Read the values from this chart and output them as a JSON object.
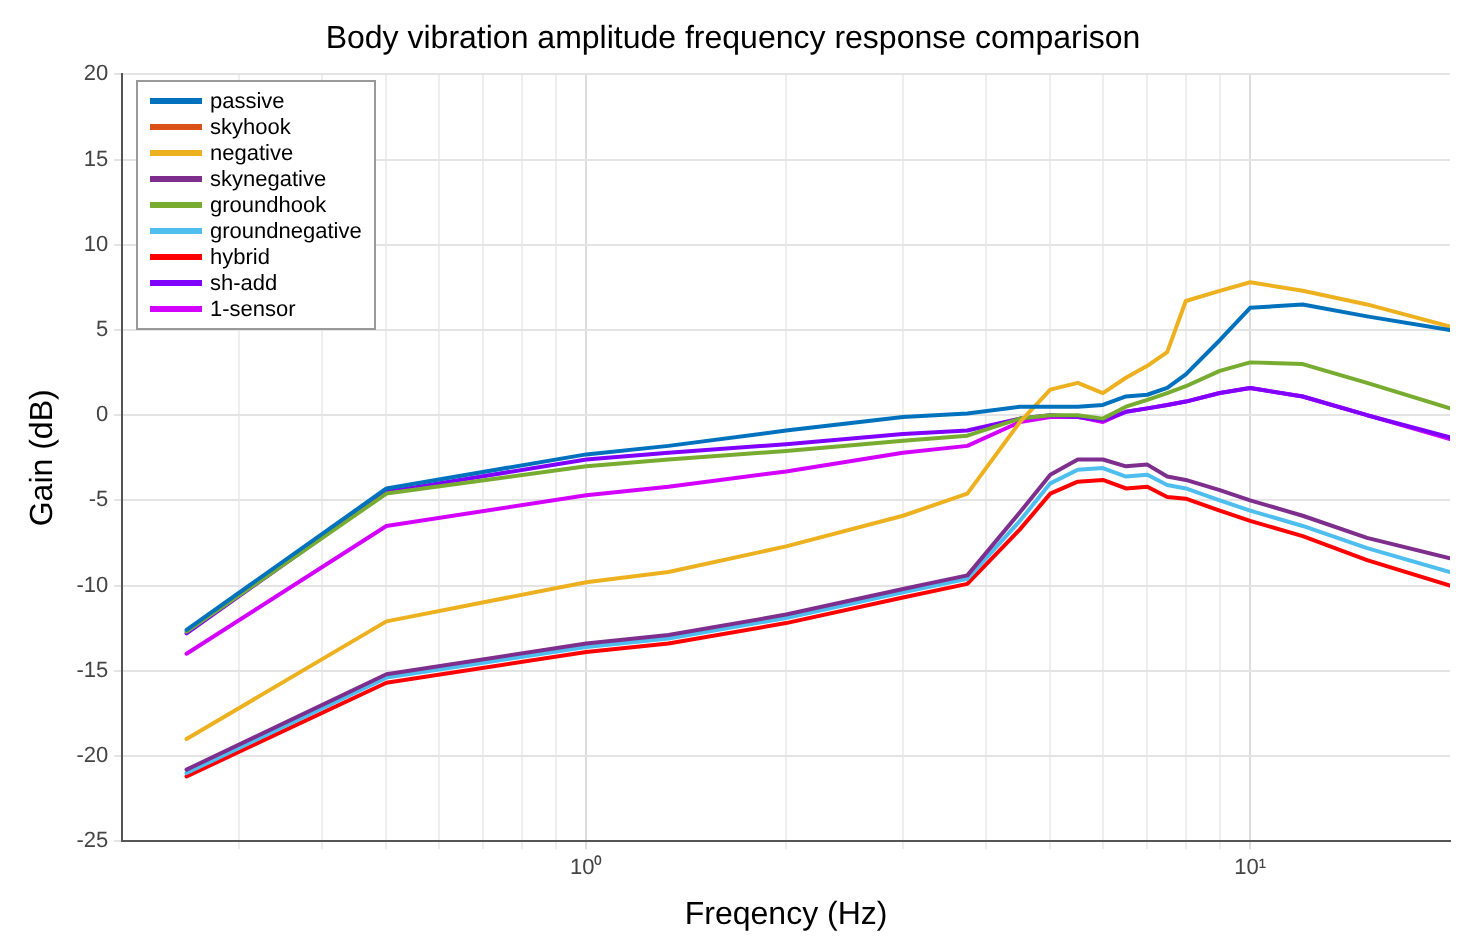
{
  "chart_data": {
    "type": "line",
    "title": "Body vibration amplitude frequency response comparison",
    "xlabel": "Freqency (Hz)",
    "ylabel": "Gain (dB)",
    "x": [
      0.25,
      0.5,
      1,
      1.33,
      2,
      3,
      3.75,
      4.5,
      5,
      5.5,
      6,
      6.5,
      7,
      7.5,
      8,
      9,
      10,
      12,
      15,
      20
    ],
    "series": [
      {
        "name": "passive",
        "color": "#0072bd",
        "values": [
          -12.6,
          -4.3,
          -2.3,
          -1.8,
          -0.9,
          -0.1,
          0.1,
          0.5,
          0.5,
          0.5,
          0.6,
          1.1,
          1.2,
          1.6,
          2.4,
          4.4,
          6.3,
          6.5,
          5.8,
          5.0
        ]
      },
      {
        "name": "skyhook",
        "color": "#d95319",
        "values": [
          null,
          null,
          null,
          null,
          null,
          null,
          null,
          null,
          null,
          null,
          null,
          null,
          null,
          null,
          null,
          null,
          null,
          null,
          null,
          null
        ]
      },
      {
        "name": "negative",
        "color": "#edb120",
        "values": [
          -19,
          -12.1,
          -9.8,
          -9.2,
          -7.7,
          -5.9,
          -4.6,
          -0.4,
          1.5,
          1.9,
          1.3,
          2.2,
          2.9,
          3.7,
          6.7,
          7.3,
          7.8,
          7.3,
          6.5,
          5.2
        ]
      },
      {
        "name": "skynegative",
        "color": "#7e2f8e",
        "values": [
          -20.8,
          -15.2,
          -13.4,
          -12.9,
          -11.7,
          -10.2,
          -9.4,
          -5.7,
          -3.5,
          -2.6,
          -2.6,
          -3.0,
          -2.9,
          -3.6,
          -3.8,
          -4.4,
          -5.0,
          -5.9,
          -7.2,
          -8.4
        ]
      },
      {
        "name": "groundhook",
        "color": "#77ac30",
        "values": [
          -12.7,
          -4.6,
          -3.0,
          -2.6,
          -2.1,
          -1.5,
          -1.2,
          -0.2,
          0,
          0,
          -0.2,
          0.5,
          0.9,
          1.3,
          1.7,
          2.6,
          3.1,
          3.0,
          1.9,
          0.4
        ]
      },
      {
        "name": "groundnegative",
        "color": "#4dbeee",
        "values": [
          -21.0,
          -15.4,
          -13.6,
          -13.1,
          -11.9,
          -10.4,
          -9.6,
          -6.2,
          -4.0,
          -3.2,
          -3.1,
          -3.6,
          -3.5,
          -4.1,
          -4.3,
          -5.0,
          -5.6,
          -6.5,
          -7.8,
          -9.2
        ]
      },
      {
        "name": "hybrid",
        "color": "#ff0000",
        "values": [
          -21.2,
          -15.7,
          -13.9,
          -13.4,
          -12.2,
          -10.7,
          -9.9,
          -6.7,
          -4.6,
          -3.9,
          -3.8,
          -4.3,
          -4.2,
          -4.8,
          -4.9,
          -5.6,
          -6.2,
          -7.1,
          -8.5,
          -10.0
        ]
      },
      {
        "name": "sh-add",
        "color": "#8000ff",
        "values": [
          -12.8,
          -4.5,
          -2.6,
          -2.2,
          -1.7,
          -1.1,
          -0.9,
          -0.2,
          0,
          -0.1,
          -0.3,
          0.2,
          0.4,
          0.6,
          0.8,
          1.3,
          1.6,
          1.1,
          0,
          -1.3
        ]
      },
      {
        "name": "1-sensor",
        "color": "#d400ff",
        "values": [
          -14,
          -6.5,
          -4.7,
          -4.2,
          -3.3,
          -2.2,
          -1.8,
          -0.4,
          -0.1,
          -0.1,
          -0.4,
          0.2,
          0.4,
          0.6,
          0.8,
          1.3,
          1.6,
          1.1,
          0,
          -1.4
        ]
      }
    ],
    "log": "x",
    "xlim": [
      0.2,
      20
    ],
    "xticks": [
      {
        "value": 0.3,
        "label": null
      },
      {
        "value": 0.4,
        "label": null
      },
      {
        "value": 0.5,
        "label": null
      },
      {
        "value": 0.6,
        "label": null
      },
      {
        "value": 0.7,
        "label": null
      },
      {
        "value": 0.8,
        "label": null
      },
      {
        "value": 0.9,
        "label": null
      },
      {
        "value": 1,
        "label": "10⁰"
      },
      {
        "value": 2,
        "label": null
      },
      {
        "value": 3,
        "label": null
      },
      {
        "value": 4,
        "label": null
      },
      {
        "value": 5,
        "label": null
      },
      {
        "value": 6,
        "label": null
      },
      {
        "value": 7,
        "label": null
      },
      {
        "value": 8,
        "label": null
      },
      {
        "value": 9,
        "label": null
      },
      {
        "value": 10,
        "label": "10¹"
      }
    ],
    "ylim": [
      -25,
      20
    ],
    "yticks": [
      -25,
      -20,
      -15,
      -10,
      -5,
      0,
      5,
      10,
      15,
      20
    ],
    "grid": true,
    "legend": "top left",
    "marker": "none",
    "line_style": "solid"
  }
}
